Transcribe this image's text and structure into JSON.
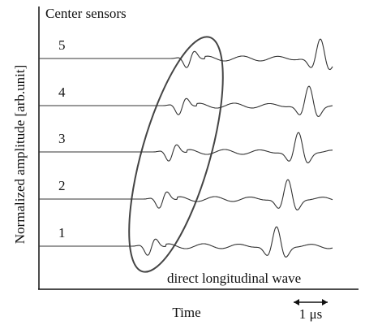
{
  "figure": {
    "title": "Center sensors",
    "sensor_labels": [
      "5",
      "4",
      "3",
      "2",
      "1"
    ],
    "y_axis_label": "Normalized amplitude [arb.unit]",
    "x_axis_label": "Time",
    "annotation": "direct longitudinal wave",
    "scale_bar": "1 μs"
  }
}
